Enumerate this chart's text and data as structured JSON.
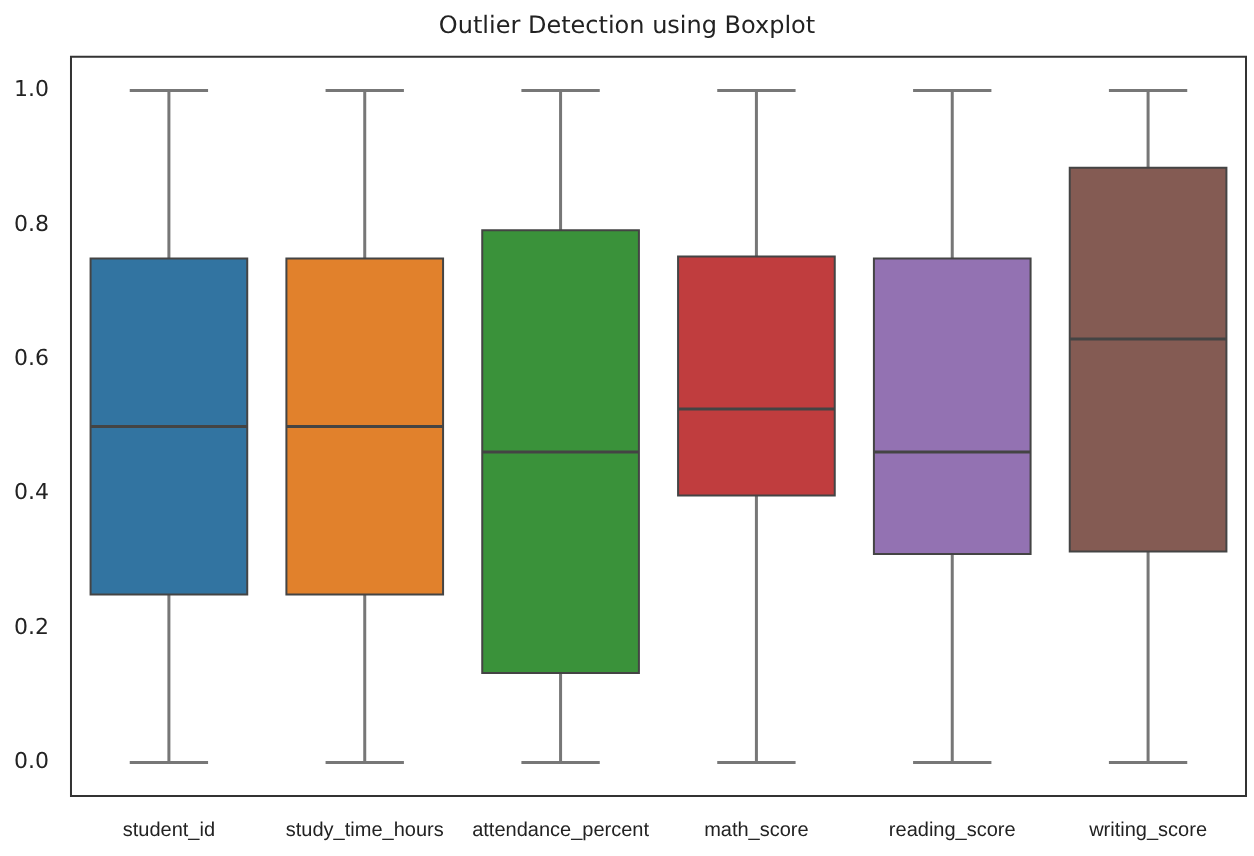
{
  "chart_data": {
    "type": "box",
    "title": "Outlier Detection using Boxplot",
    "categories": [
      "student_id",
      "study_time_hours",
      "attendance_percent",
      "math_score",
      "reading_score",
      "writing_score"
    ],
    "colors": [
      "#3274a1",
      "#e1812c",
      "#3a923a",
      "#c03d3e",
      "#9372b2",
      "#845b53"
    ],
    "boxes": [
      {
        "low": 0,
        "q1": 0.25,
        "median": 0.5,
        "q3": 0.75,
        "high": 1
      },
      {
        "low": 0,
        "q1": 0.25,
        "median": 0.5,
        "q3": 0.75,
        "high": 1
      },
      {
        "low": 0,
        "q1": 0.133,
        "median": 0.462,
        "q3": 0.792,
        "high": 1
      },
      {
        "low": 0,
        "q1": 0.397,
        "median": 0.526,
        "q3": 0.753,
        "high": 1
      },
      {
        "low": 0,
        "q1": 0.31,
        "median": 0.462,
        "q3": 0.75,
        "high": 1
      },
      {
        "low": 0,
        "q1": 0.314,
        "median": 0.63,
        "q3": 0.885,
        "high": 1
      }
    ],
    "ylim": [
      -0.05,
      1.05
    ],
    "yticks": [
      {
        "value": 0,
        "label": "0.0"
      },
      {
        "value": 0.2,
        "label": "0.2"
      },
      {
        "value": 0.4,
        "label": "0.4"
      },
      {
        "value": 0.6,
        "label": "0.6"
      },
      {
        "value": 0.8,
        "label": "0.8"
      },
      {
        "value": 1,
        "label": "1.0"
      }
    ],
    "grid": false,
    "legend": false
  }
}
